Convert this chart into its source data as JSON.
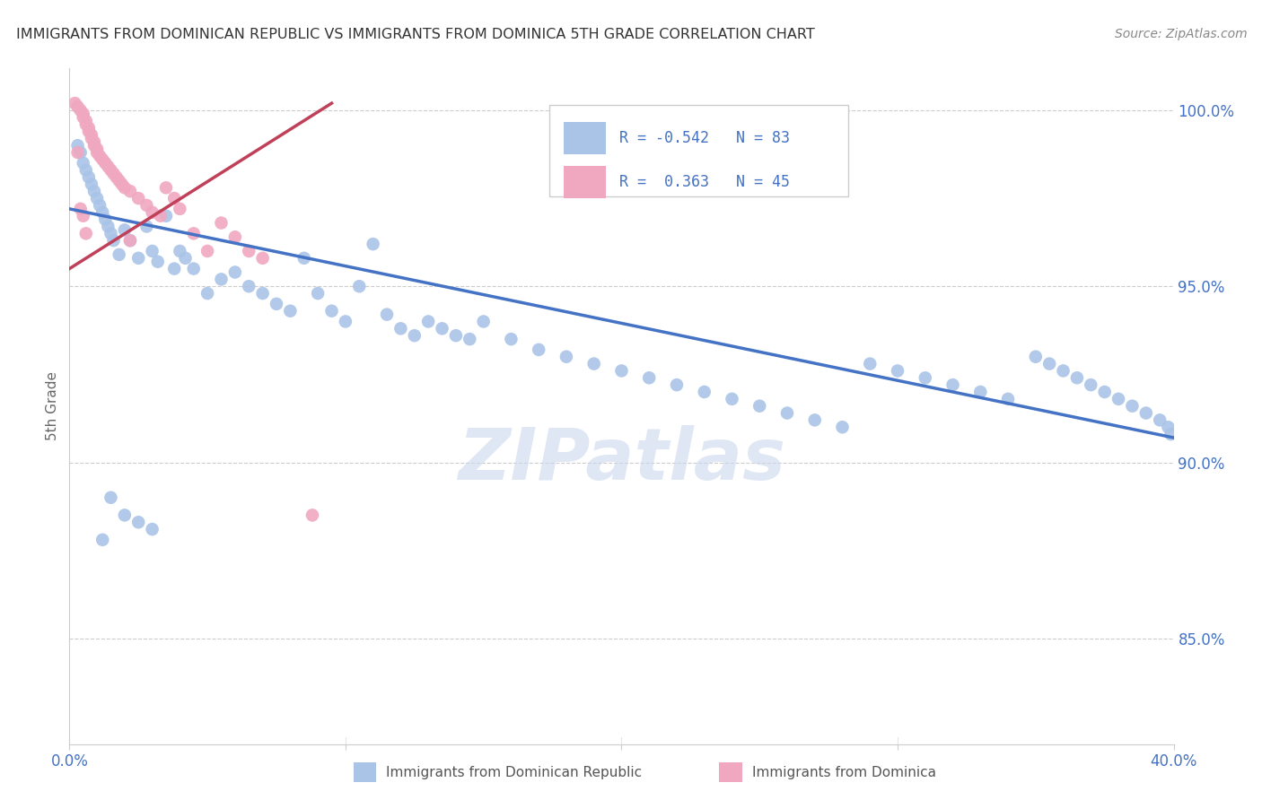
{
  "title": "IMMIGRANTS FROM DOMINICAN REPUBLIC VS IMMIGRANTS FROM DOMINICA 5TH GRADE CORRELATION CHART",
  "source": "Source: ZipAtlas.com",
  "ylabel": "5th Grade",
  "y_ticks": [
    0.85,
    0.9,
    0.95,
    1.0
  ],
  "y_tick_labels": [
    "85.0%",
    "90.0%",
    "95.0%",
    "100.0%"
  ],
  "xlim": [
    0.0,
    0.4
  ],
  "ylim": [
    0.82,
    1.012
  ],
  "color_blue": "#aac4e8",
  "color_pink": "#f0a8c0",
  "line_color_blue": "#4472c4",
  "line_color_pink": "#c0405a",
  "watermark": "ZIPatlas",
  "title_color": "#333333",
  "axis_label_color": "#4472c4",
  "blue_line_x": [
    0.0,
    0.4
  ],
  "blue_line_y": [
    0.972,
    0.907
  ],
  "pink_line_x": [
    0.0,
    0.095
  ],
  "pink_line_y": [
    0.955,
    1.002
  ],
  "blue_x": [
    0.003,
    0.004,
    0.005,
    0.006,
    0.007,
    0.008,
    0.009,
    0.01,
    0.011,
    0.012,
    0.013,
    0.014,
    0.015,
    0.016,
    0.018,
    0.02,
    0.022,
    0.025,
    0.028,
    0.03,
    0.032,
    0.035,
    0.038,
    0.04,
    0.042,
    0.045,
    0.05,
    0.055,
    0.06,
    0.065,
    0.07,
    0.075,
    0.08,
    0.085,
    0.09,
    0.095,
    0.1,
    0.105,
    0.11,
    0.115,
    0.12,
    0.125,
    0.13,
    0.135,
    0.14,
    0.145,
    0.15,
    0.16,
    0.17,
    0.18,
    0.19,
    0.2,
    0.21,
    0.22,
    0.23,
    0.24,
    0.25,
    0.26,
    0.27,
    0.28,
    0.29,
    0.3,
    0.31,
    0.32,
    0.33,
    0.34,
    0.35,
    0.355,
    0.36,
    0.365,
    0.37,
    0.375,
    0.38,
    0.385,
    0.39,
    0.395,
    0.398,
    0.399,
    0.012,
    0.015,
    0.02,
    0.025,
    0.03
  ],
  "blue_y": [
    0.99,
    0.988,
    0.985,
    0.983,
    0.981,
    0.979,
    0.977,
    0.975,
    0.973,
    0.971,
    0.969,
    0.967,
    0.965,
    0.963,
    0.959,
    0.966,
    0.963,
    0.958,
    0.967,
    0.96,
    0.957,
    0.97,
    0.955,
    0.96,
    0.958,
    0.955,
    0.948,
    0.952,
    0.954,
    0.95,
    0.948,
    0.945,
    0.943,
    0.958,
    0.948,
    0.943,
    0.94,
    0.95,
    0.962,
    0.942,
    0.938,
    0.936,
    0.94,
    0.938,
    0.936,
    0.935,
    0.94,
    0.935,
    0.932,
    0.93,
    0.928,
    0.926,
    0.924,
    0.922,
    0.92,
    0.918,
    0.916,
    0.914,
    0.912,
    0.91,
    0.928,
    0.926,
    0.924,
    0.922,
    0.92,
    0.918,
    0.93,
    0.928,
    0.926,
    0.924,
    0.922,
    0.92,
    0.918,
    0.916,
    0.914,
    0.912,
    0.91,
    0.908,
    0.878,
    0.89,
    0.885,
    0.883,
    0.881
  ],
  "pink_x": [
    0.002,
    0.003,
    0.004,
    0.005,
    0.005,
    0.006,
    0.006,
    0.007,
    0.007,
    0.008,
    0.008,
    0.009,
    0.009,
    0.01,
    0.01,
    0.011,
    0.012,
    0.013,
    0.014,
    0.015,
    0.016,
    0.017,
    0.018,
    0.019,
    0.02,
    0.022,
    0.025,
    0.028,
    0.03,
    0.033,
    0.035,
    0.038,
    0.04,
    0.045,
    0.05,
    0.055,
    0.06,
    0.065,
    0.07,
    0.003,
    0.004,
    0.005,
    0.006,
    0.022,
    0.088
  ],
  "pink_y": [
    1.002,
    1.001,
    1.0,
    0.999,
    0.998,
    0.997,
    0.996,
    0.995,
    0.994,
    0.993,
    0.992,
    0.991,
    0.99,
    0.989,
    0.988,
    0.987,
    0.986,
    0.985,
    0.984,
    0.983,
    0.982,
    0.981,
    0.98,
    0.979,
    0.978,
    0.977,
    0.975,
    0.973,
    0.971,
    0.97,
    0.978,
    0.975,
    0.972,
    0.965,
    0.96,
    0.968,
    0.964,
    0.96,
    0.958,
    0.988,
    0.972,
    0.97,
    0.965,
    0.963,
    0.885
  ]
}
